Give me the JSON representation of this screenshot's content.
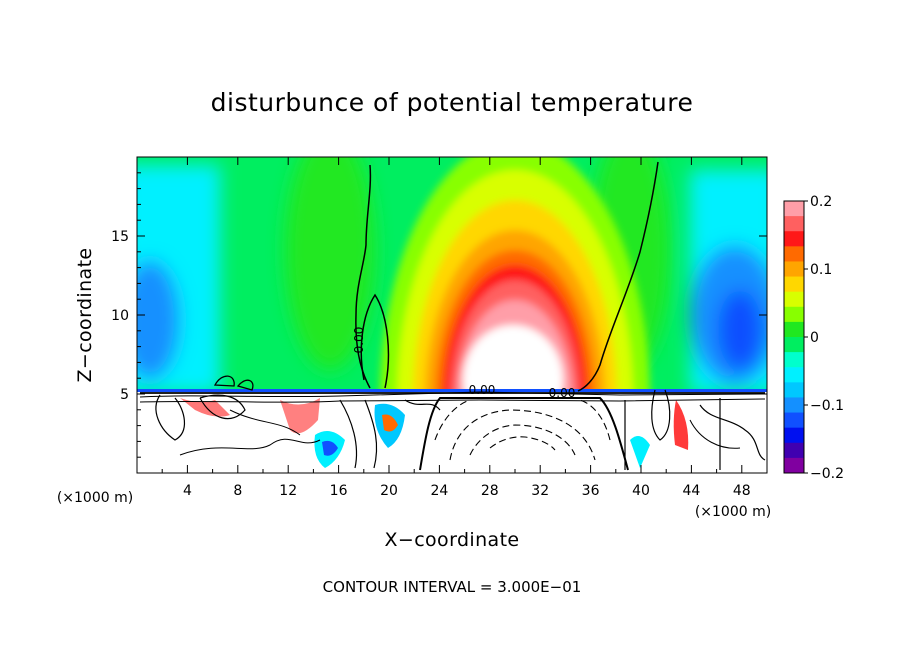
{
  "chart_data": {
    "type": "heatmap",
    "title": "disturbunce of potential temperature",
    "xlabel": "X−coordinate",
    "ylabel": "Z−coordinate",
    "x_unit_label": "(×1000 m)",
    "x_unit_label_right": "(×1000 m)",
    "xlim": [
      0,
      50
    ],
    "ylim": [
      0,
      20
    ],
    "x_ticks": [
      4,
      8,
      12,
      16,
      20,
      24,
      28,
      32,
      36,
      40,
      44,
      48
    ],
    "x_tick_labels": [
      "4",
      "8",
      "12",
      "16",
      "20",
      "24",
      "28",
      "32",
      "36",
      "40",
      "44",
      "48"
    ],
    "y_ticks": [
      5,
      10,
      15
    ],
    "y_tick_labels": [
      "5",
      "10",
      "15"
    ],
    "colorbar": {
      "range": [
        -0.2,
        0.2
      ],
      "ticks": [
        0.2,
        0.1,
        0,
        -0.1,
        -0.2
      ],
      "tick_labels": [
        "0.2",
        "0.1",
        "0",
        "−0.1",
        "−0.2"
      ],
      "colors": [
        "#ff9ea8",
        "#ff6060",
        "#ff1818",
        "#ff6a00",
        "#ffa500",
        "#ffd700",
        "#d8ff00",
        "#88ff00",
        "#20e820",
        "#00ee60",
        "#00ffcc",
        "#00f0ff",
        "#00c8ff",
        "#1490ff",
        "#1050ff",
        "#0010f0",
        "#4000b0",
        "#8000a0"
      ]
    },
    "contour_line_labels": [
      "0.00",
      "0.00",
      "0.00"
    ],
    "annotation": "CONTOUR INTERVAL = 3.000E−01",
    "plume_center_x": 30,
    "plume_peak_z": 6.5,
    "boundary_z": 5.2
  }
}
